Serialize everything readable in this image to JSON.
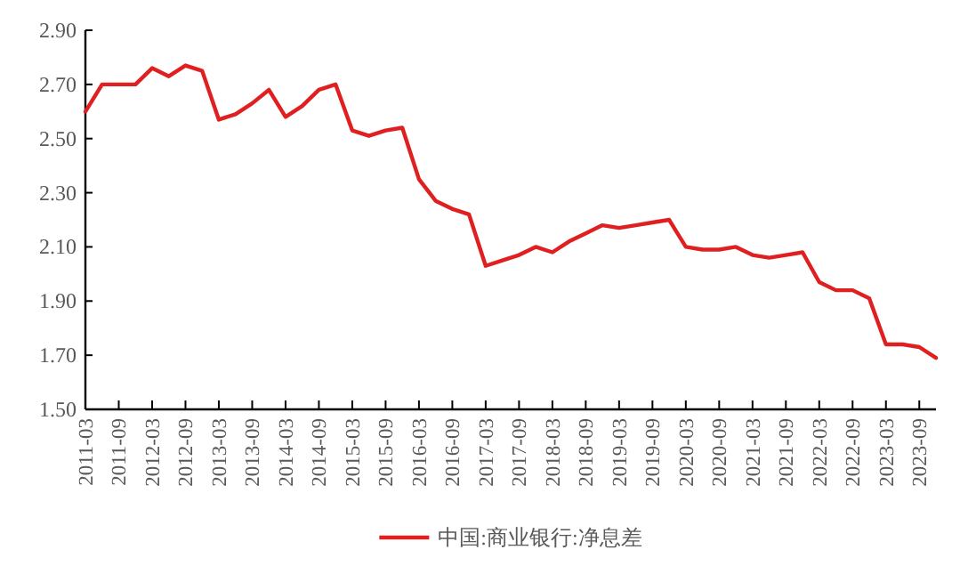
{
  "chart_data": {
    "type": "line",
    "categories": [
      "2011-03",
      null,
      "2011-09",
      null,
      "2012-03",
      null,
      "2012-09",
      null,
      "2013-03",
      null,
      "2013-09",
      null,
      "2014-03",
      null,
      "2014-09",
      null,
      "2015-03",
      null,
      "2015-09",
      null,
      "2016-03",
      null,
      "2016-09",
      null,
      "2017-03",
      null,
      "2017-09",
      null,
      "2018-03",
      null,
      "2018-09",
      null,
      "2019-03",
      null,
      "2019-09",
      null,
      "2020-03",
      null,
      "2020-09",
      null,
      "2021-03",
      null,
      "2021-09",
      null,
      "2022-03",
      null,
      "2022-09",
      null,
      "2023-03",
      null,
      "2023-09",
      null
    ],
    "series": [
      {
        "name": "中国:商业银行:净息差",
        "color": "#e02020",
        "values": [
          2.6,
          2.7,
          2.7,
          2.7,
          2.76,
          2.73,
          2.77,
          2.75,
          2.57,
          2.59,
          2.63,
          2.68,
          2.58,
          2.62,
          2.68,
          2.7,
          2.53,
          2.51,
          2.53,
          2.54,
          2.35,
          2.27,
          2.24,
          2.22,
          2.03,
          2.05,
          2.07,
          2.1,
          2.08,
          2.12,
          2.15,
          2.18,
          2.17,
          2.18,
          2.19,
          2.2,
          2.1,
          2.09,
          2.09,
          2.1,
          2.07,
          2.06,
          2.07,
          2.08,
          1.97,
          1.94,
          1.94,
          1.91,
          1.74,
          1.74,
          1.73,
          1.69
        ]
      }
    ],
    "ylim": [
      1.5,
      2.9
    ],
    "yticks": [
      {
        "value": 1.5,
        "label": "1.50"
      },
      {
        "value": 1.7,
        "label": "1.70"
      },
      {
        "value": 1.9,
        "label": "1.90"
      },
      {
        "value": 2.1,
        "label": "2.10"
      },
      {
        "value": 2.3,
        "label": "2.30"
      },
      {
        "value": 2.5,
        "label": "2.50"
      },
      {
        "value": 2.7,
        "label": "2.70"
      },
      {
        "value": 2.9,
        "label": "2.90"
      }
    ],
    "legend": "bottom"
  }
}
